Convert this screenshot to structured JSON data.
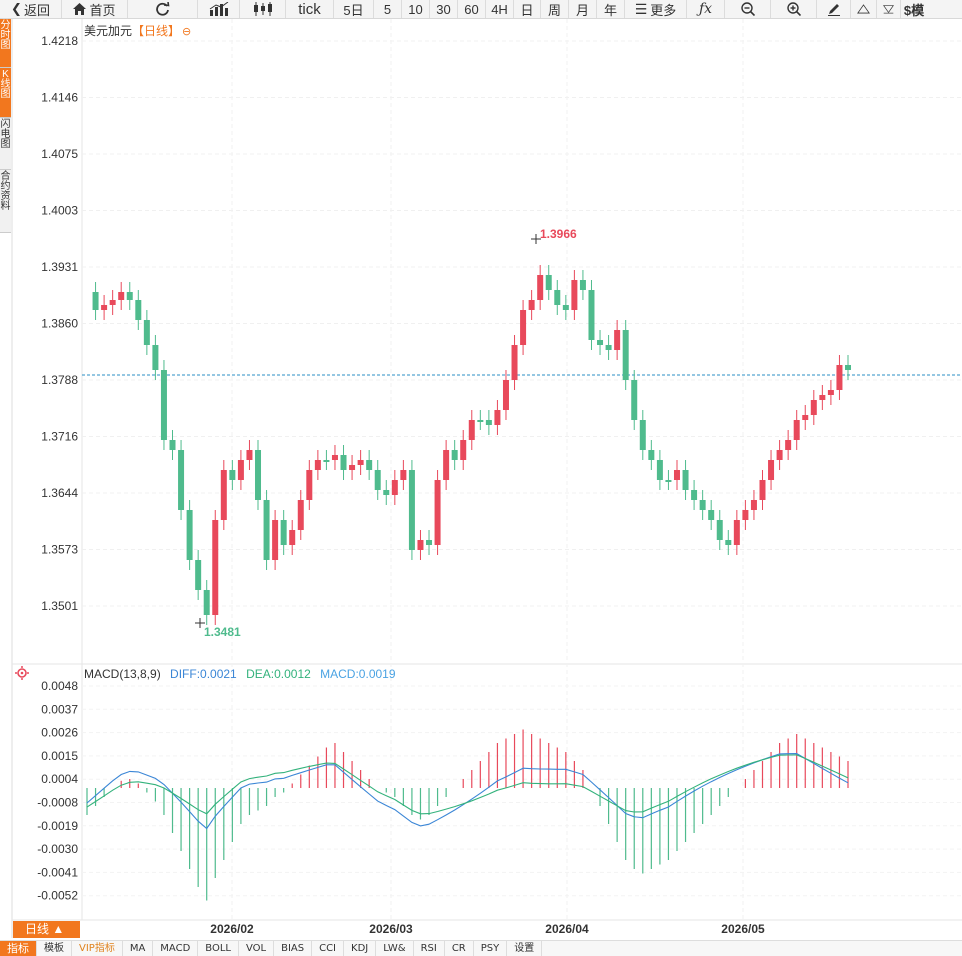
{
  "toolbar": {
    "back_label": "返回",
    "home_label": "首页",
    "tick_label": "tick",
    "five_day_label": "5日",
    "periods": [
      "5",
      "10",
      "30",
      "60",
      "4H",
      "日",
      "周",
      "月",
      "年"
    ],
    "more_label": "更多",
    "dollar_label": "$模"
  },
  "left_tabs": [
    "分时图",
    "K线图",
    "闪电图",
    "合约资料"
  ],
  "chart": {
    "symbol_title": "美元加元",
    "period_tag": "【日线】",
    "price_ticks": [
      "1.4218",
      "1.4146",
      "1.4075",
      "1.4003",
      "1.3931",
      "1.3860",
      "1.3788",
      "1.3716",
      "1.3644",
      "1.3573",
      "1.3501"
    ],
    "high_label": "1.3966",
    "low_label": "1.3481",
    "date_ticks": [
      "2026/02",
      "2026/03",
      "2026/04",
      "2026/05"
    ],
    "up_color": "#e8495b",
    "down_color": "#4fbb8d"
  },
  "macd": {
    "name": "MACD(13,8,9)",
    "diff": "DIFF:0.0021",
    "dea": "DEA:0.0012",
    "macd": "MACD:0.0019",
    "ticks": [
      "0.0048",
      "0.0037",
      "0.0026",
      "0.0015",
      "0.0004",
      "-0.0008",
      "-0.0019",
      "-0.0030",
      "-0.0041",
      "-0.0052"
    ],
    "diff_color": "#3b86d6",
    "dea_color": "#33b27c"
  },
  "bottom_tabs": [
    "指标",
    "模板",
    "VIP指标",
    "MA",
    "MACD",
    "BOLL",
    "VOL",
    "BIAS",
    "CCI",
    "KDJ",
    "LW&",
    "RSI",
    "CR",
    "PSY",
    "设置"
  ],
  "period_button": "日线 ▲"
}
